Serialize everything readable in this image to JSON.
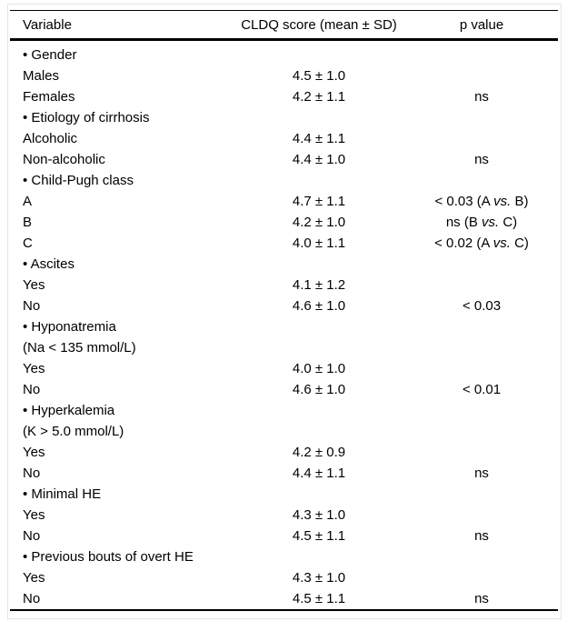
{
  "table": {
    "headers": [
      "Variable",
      "CLDQ score (mean ± SD)",
      "p value"
    ],
    "rows": [
      {
        "variable": "• Gender",
        "score": "",
        "p": ""
      },
      {
        "variable": "Males",
        "score": "4.5 ± 1.0",
        "p": ""
      },
      {
        "variable": "Females",
        "score": "4.2 ± 1.1",
        "p": "ns"
      },
      {
        "variable": "• Etiology of cirrhosis",
        "score": "",
        "p": ""
      },
      {
        "variable": "Alcoholic",
        "score": "4.4 ± 1.1",
        "p": ""
      },
      {
        "variable": "Non-alcoholic",
        "score": "4.4 ± 1.0",
        "p": "ns"
      },
      {
        "variable": "• Child-Pugh class",
        "score": "",
        "p": ""
      },
      {
        "variable": "A",
        "score": "4.7 ± 1.1",
        "p": "< 0.03 (A vs. B)"
      },
      {
        "variable": "B",
        "score": "4.2 ± 1.0",
        "p": "ns (B vs. C)"
      },
      {
        "variable": "C",
        "score": "4.0 ± 1.1",
        "p": "< 0.02 (A vs. C)"
      },
      {
        "variable": "• Ascites",
        "score": "",
        "p": ""
      },
      {
        "variable": "Yes",
        "score": "4.1 ± 1.2",
        "p": ""
      },
      {
        "variable": "No",
        "score": "4.6 ± 1.0",
        "p": "< 0.03"
      },
      {
        "variable": "• Hyponatremia",
        "score": "",
        "p": ""
      },
      {
        "variable": "(Na < 135 mmol/L)",
        "score": "",
        "p": ""
      },
      {
        "variable": "Yes",
        "score": "4.0 ± 1.0",
        "p": ""
      },
      {
        "variable": "No",
        "score": "4.6 ± 1.0",
        "p": "< 0.01"
      },
      {
        "variable": "• Hyperkalemia",
        "score": "",
        "p": ""
      },
      {
        "variable": "(K > 5.0 mmol/L)",
        "score": "",
        "p": ""
      },
      {
        "variable": "Yes",
        "score": "4.2 ± 0.9",
        "p": ""
      },
      {
        "variable": "No",
        "score": "4.4 ± 1.1",
        "p": "ns"
      },
      {
        "variable": "• Minimal HE",
        "score": "",
        "p": ""
      },
      {
        "variable": "Yes",
        "score": "4.3 ± 1.0",
        "p": ""
      },
      {
        "variable": "No",
        "score": "4.5 ± 1.1",
        "p": "ns"
      },
      {
        "variable": "• Previous bouts of overt HE",
        "score": "",
        "p": ""
      },
      {
        "variable": "Yes",
        "score": "4.3 ± 1.0",
        "p": ""
      },
      {
        "variable": "No",
        "score": "4.5 ± 1.1",
        "p": "ns"
      }
    ],
    "italicized_word": "vs.",
    "colors": {
      "text": "#000000",
      "rules": "#000000",
      "frame_border": "#e4e4e4",
      "background": "#ffffff"
    }
  }
}
